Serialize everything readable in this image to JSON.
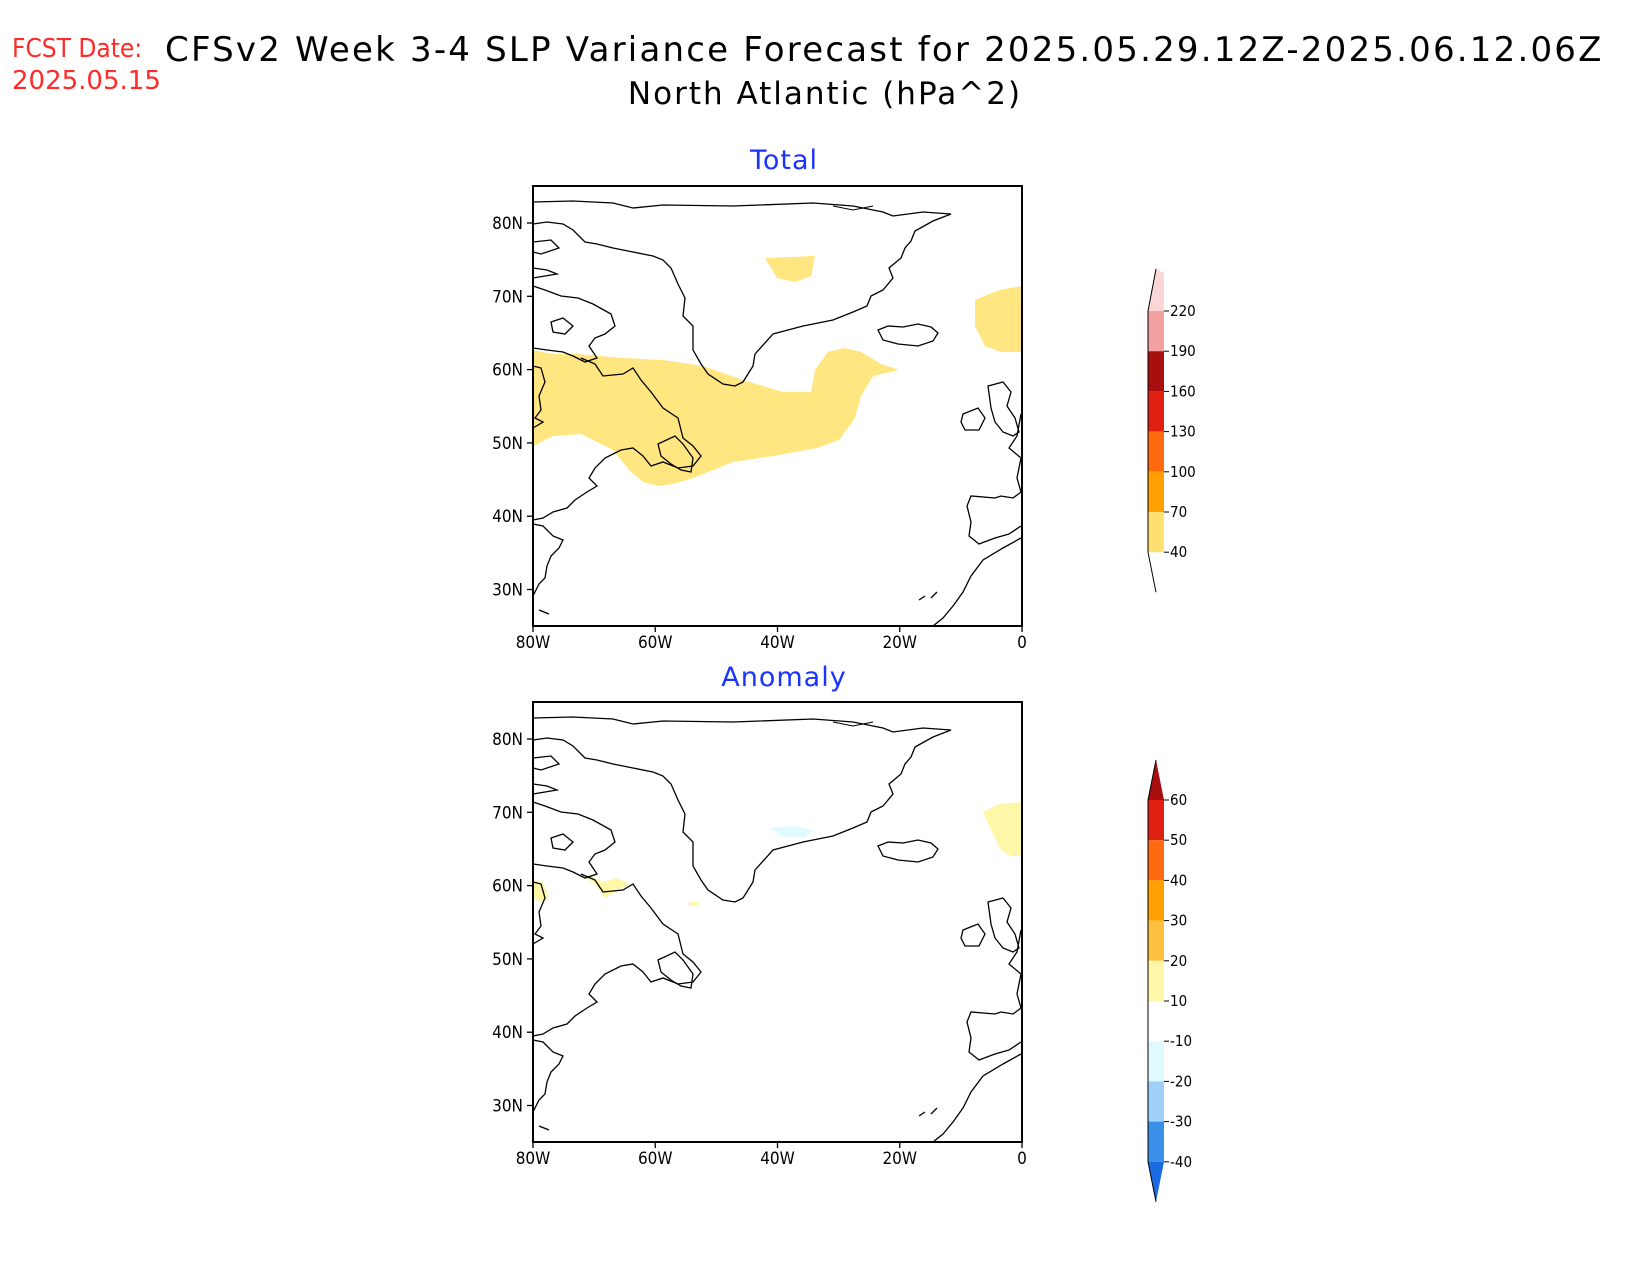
{
  "header": {
    "fcst_label": "FCST Date:",
    "fcst_date": "2025.05.15",
    "title": "CFSv2 Week 3-4 SLP Variance Forecast for 2025.05.29.12Z-2025.06.12.06Z",
    "subtitle": "North Atlantic (hPa^2)"
  },
  "axes": {
    "lat_labels": [
      "80N",
      "70N",
      "60N",
      "50N",
      "40N",
      "30N"
    ],
    "lon_labels": [
      "80W",
      "60W",
      "40W",
      "20W",
      "0"
    ]
  },
  "panels": [
    {
      "title": "Total",
      "shaded_regions": [
        {
          "name": "labrador-sea-band",
          "level": "40-70"
        },
        {
          "name": "greenland-interior",
          "level": "40-70"
        },
        {
          "name": "norwegian-sea",
          "level": "40-70"
        }
      ],
      "colorbar": {
        "labels": [
          "220",
          "190",
          "160",
          "130",
          "100",
          "70",
          "40"
        ],
        "colors": [
          "#fbd6d6",
          "#f2a0a0",
          "#a81010",
          "#e02010",
          "#ff6a10",
          "#ffa000",
          "#ffe070"
        ]
      }
    },
    {
      "title": "Anomaly",
      "shaded_regions": [
        {
          "name": "norwegian-sea",
          "level": "10-20"
        },
        {
          "name": "labrador",
          "level": "10-20"
        },
        {
          "name": "greenland-east",
          "level": "-10--20"
        }
      ],
      "colorbar": {
        "labels": [
          "60",
          "50",
          "40",
          "30",
          "20",
          "10",
          "-10",
          "-20",
          "-30",
          "-40"
        ],
        "colors": [
          "#a81010",
          "#e02010",
          "#ff6a10",
          "#ffa000",
          "#ffc040",
          "#fff7a8",
          "#ffffff",
          "#e0fbff",
          "#a0d0f8",
          "#3a90e8",
          "#1a6ae0"
        ]
      }
    }
  ]
}
